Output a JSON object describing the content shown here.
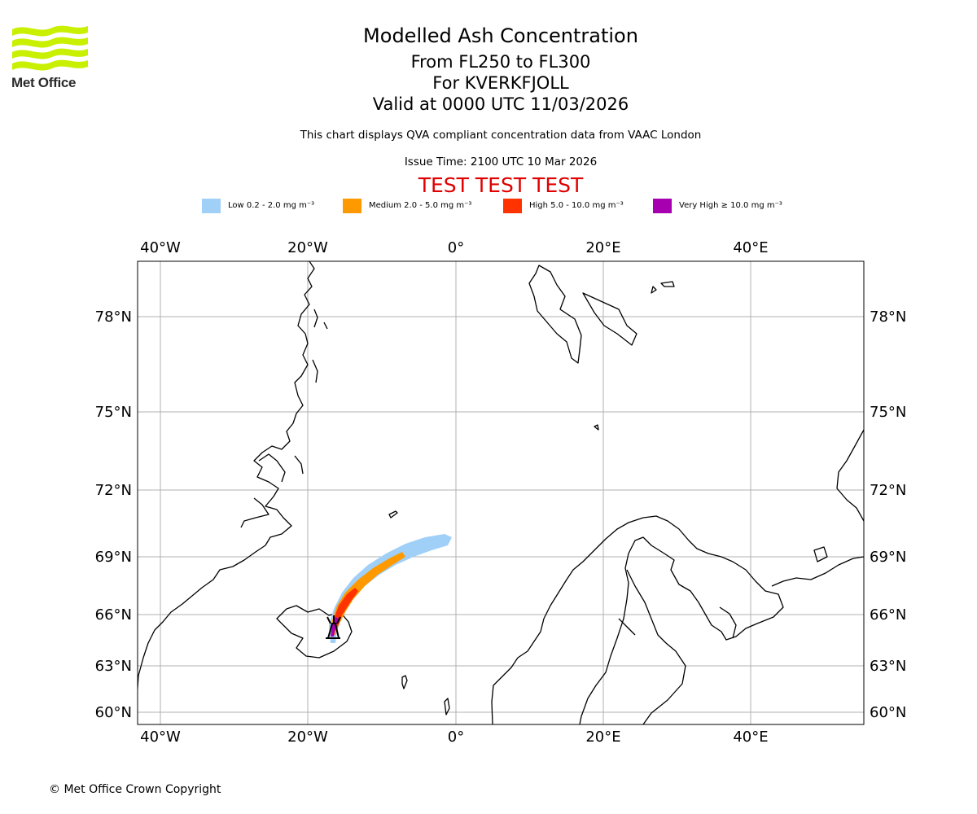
{
  "header": {
    "logo_text": "Met Office",
    "title": "Modelled Ash Concentration",
    "level_range": "From FL250 to FL300",
    "volcano": "For KVERKFJOLL",
    "valid_time": "Valid at 0000 UTC 11/03/2026",
    "note": "This chart displays QVA compliant concentration data from VAAC London",
    "issue_time": "Issue Time: 2100 UTC 10 Mar 2026",
    "test_banner": "TEST TEST TEST"
  },
  "legend": [
    {
      "label": "Low 0.2 - 2.0 mg m⁻³",
      "color": "#a0d0f8"
    },
    {
      "label": "Medium 2.0 - 5.0 mg m⁻³",
      "color": "#ff9900"
    },
    {
      "label": "High 5.0 - 10.0 mg m⁻³",
      "color": "#ff3300"
    },
    {
      "label": "Very High ≥ 10.0 mg m⁻³",
      "color": "#a600b0"
    }
  ],
  "map": {
    "lon_ticks": [
      "40°W",
      "20°W",
      "0°",
      "20°E",
      "40°E"
    ],
    "lat_ticks": [
      "78°N",
      "75°N",
      "72°N",
      "69°N",
      "66°N",
      "63°N",
      "60°N"
    ],
    "gridlines": true,
    "volcano_symbol": "volcano-icon"
  },
  "footer": {
    "copyright": "© Met Office Crown Copyright"
  }
}
